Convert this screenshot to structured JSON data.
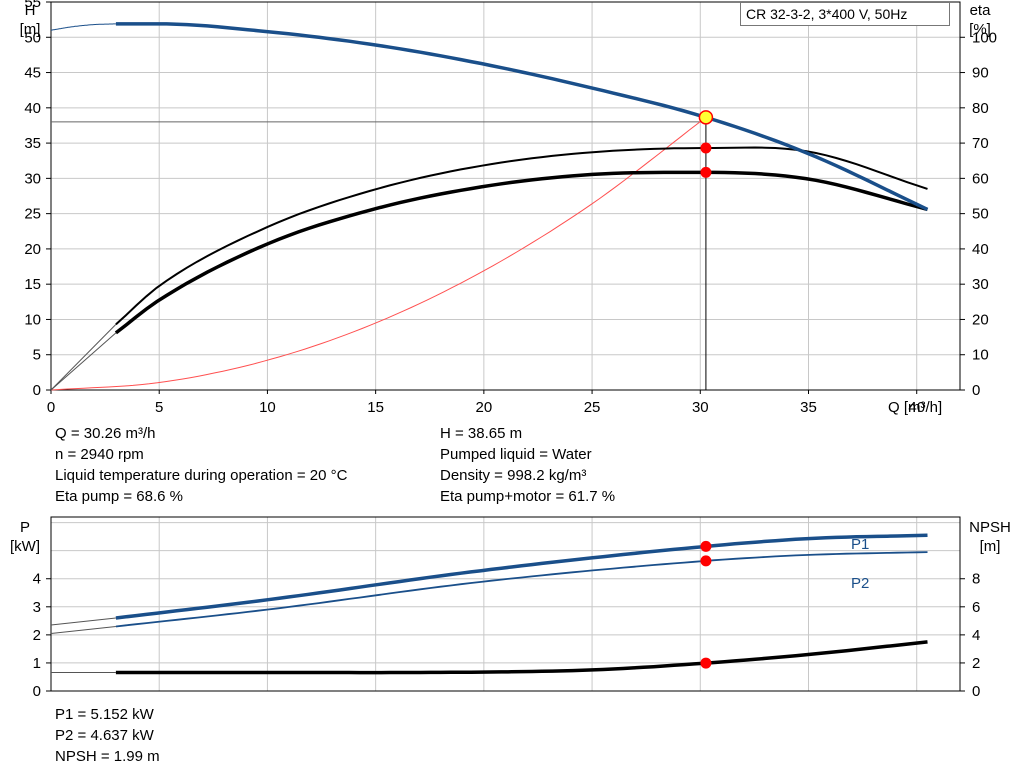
{
  "title": "CR 32-3-2, 3*400 V, 50Hz",
  "info_top_left": [
    "Q = 30.26 m³/h",
    "n = 2940 rpm",
    "Liquid temperature during operation = 20 °C",
    "Eta pump = 68.6 %"
  ],
  "info_top_right": [
    "H = 38.65 m",
    "Pumped liquid = Water",
    "Density = 998.2 kg/m³",
    "Eta pump+motor = 61.7 %"
  ],
  "info_bottom": [
    "P1 = 5.152 kW",
    "P2 = 4.637 kW",
    "NPSH = 1.99 m"
  ],
  "colors": {
    "blue": "#1a4f8a",
    "black": "#000000",
    "red_curve": "#ff5050",
    "marker_red": "#ff0000",
    "marker_yellow": "#ffff33",
    "grid": "#c8c8c8"
  },
  "chart_data": [
    {
      "type": "line",
      "name": "top-chart",
      "title": "CR 32-3-2, 3*400 V, 50Hz",
      "xlabel": "Q [m³/h]",
      "ylabel_left": [
        "H",
        "[m]"
      ],
      "ylabel_right": [
        "eta",
        "[%]"
      ],
      "xlim": [
        0,
        42
      ],
      "ylim_left": [
        0,
        55
      ],
      "ylim_right": [
        0,
        110
      ],
      "xticks": [
        0,
        5,
        10,
        15,
        20,
        25,
        30,
        35,
        40
      ],
      "yticks_left": [
        0,
        5,
        10,
        15,
        20,
        25,
        30,
        35,
        40,
        45,
        50,
        55
      ],
      "yticks_right": [
        0,
        10,
        20,
        30,
        40,
        50,
        60,
        70,
        80,
        90,
        100
      ],
      "grid": true,
      "duty_point": {
        "q": 30.26,
        "h": 38.65,
        "eta_pump": 68.6,
        "eta_total": 61.7
      },
      "series": [
        {
          "key": "H",
          "axis": "left",
          "x": [
            3.0,
            5,
            10,
            15,
            20,
            25,
            30.26,
            35,
            40.5
          ],
          "y": [
            51.9,
            51.9,
            50.8,
            48.9,
            46.2,
            42.8,
            38.65,
            33.5,
            25.6
          ],
          "extension_x": [
            0,
            1,
            2,
            3.0
          ],
          "extension_y": [
            51.0,
            51.5,
            51.8,
            51.9
          ]
        },
        {
          "key": "eta_pump",
          "axis": "right",
          "x": [
            3.0,
            5,
            10,
            15,
            20,
            25,
            30.26,
            35,
            40.5
          ],
          "y": [
            18.6,
            29.5,
            46.2,
            56.9,
            63.7,
            67.4,
            68.6,
            67.6,
            57.0
          ],
          "extension_x": [
            0,
            3.0
          ],
          "extension_y": [
            0,
            18.6
          ]
        },
        {
          "key": "eta_total",
          "axis": "right",
          "x": [
            3.0,
            5,
            10,
            15,
            20,
            25,
            30.26,
            35,
            40.5
          ],
          "y": [
            16.2,
            25.5,
            41.4,
            51.4,
            57.7,
            61.1,
            61.7,
            59.8,
            51.2
          ],
          "extension_x": [
            0,
            3.0
          ],
          "extension_y": [
            0,
            16.2
          ]
        },
        {
          "key": "system_curve",
          "axis": "left",
          "x": [
            0,
            5,
            10,
            15,
            20,
            25,
            30.26
          ],
          "y": [
            0,
            1.06,
            4.22,
            9.5,
            16.9,
            26.4,
            38.65
          ]
        }
      ]
    },
    {
      "type": "line",
      "name": "bottom-chart",
      "ylabel_left": [
        "P",
        "[kW]"
      ],
      "ylabel_right": [
        "NPSH",
        "[m]"
      ],
      "xlim": [
        0,
        42
      ],
      "ylim_left": [
        0,
        6.2
      ],
      "ylim_right": [
        0,
        12.4
      ],
      "yticks_left": [
        0,
        1,
        2,
        3,
        4
      ],
      "yticks_right": [
        0,
        2,
        4,
        6,
        8
      ],
      "grid": true,
      "series": [
        {
          "key": "P1",
          "name": "P1",
          "axis": "left",
          "x": [
            3.0,
            10,
            20,
            30.26,
            35,
            40.5
          ],
          "y": [
            2.6,
            3.25,
            4.3,
            5.152,
            5.43,
            5.55
          ],
          "extension_x": [
            0,
            3.0
          ],
          "extension_y": [
            2.35,
            2.6
          ]
        },
        {
          "key": "P2",
          "name": "P2",
          "axis": "left",
          "x": [
            3.0,
            10,
            20,
            30.26,
            35,
            40.5
          ],
          "y": [
            2.3,
            2.9,
            3.9,
            4.637,
            4.85,
            4.95
          ],
          "extension_x": [
            0,
            3.0
          ],
          "extension_y": [
            2.05,
            2.3
          ]
        },
        {
          "key": "NPSH",
          "axis": "right",
          "x": [
            3.0,
            10,
            20,
            25,
            30.26,
            35,
            40.5
          ],
          "y": [
            1.32,
            1.32,
            1.35,
            1.5,
            1.99,
            2.6,
            3.5
          ],
          "extension_x": [
            0,
            3.0
          ],
          "extension_y": [
            1.32,
            1.32
          ]
        }
      ]
    }
  ]
}
